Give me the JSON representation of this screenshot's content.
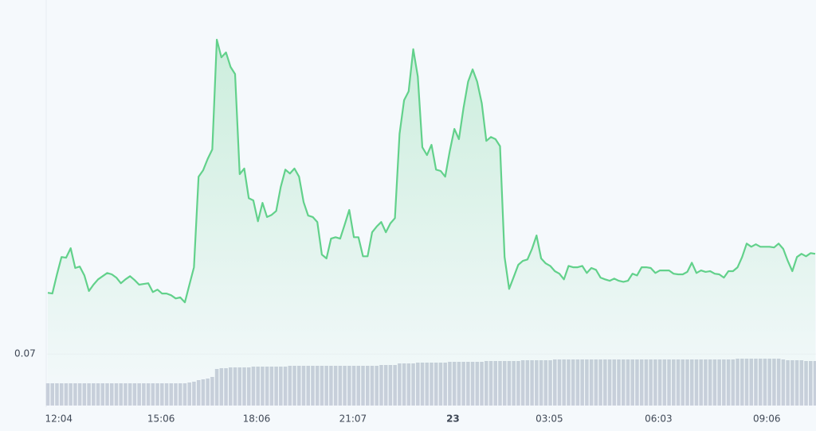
{
  "chart_data": {
    "type": "line",
    "color": "#62d18b",
    "values": [
      0.07173,
      0.07171,
      0.07225,
      0.07274,
      0.07272,
      0.07299,
      0.07243,
      0.07247,
      0.07222,
      0.07178,
      0.07196,
      0.07211,
      0.0722,
      0.07229,
      0.07225,
      0.07216,
      0.072,
      0.07211,
      0.0722,
      0.07209,
      0.07196,
      0.07198,
      0.072,
      0.07175,
      0.07182,
      0.07171,
      0.07171,
      0.07166,
      0.07157,
      0.0716,
      0.07146,
      0.07196,
      0.07245,
      0.07501,
      0.07519,
      0.07551,
      0.07578,
      0.07888,
      0.07838,
      0.07852,
      0.07811,
      0.07791,
      0.07508,
      0.07524,
      0.0744,
      0.07434,
      0.07375,
      0.07427,
      0.07387,
      0.07393,
      0.07404,
      0.07472,
      0.07521,
      0.0751,
      0.07524,
      0.07501,
      0.07429,
      0.07391,
      0.07387,
      0.07373,
      0.07281,
      0.0727,
      0.07326,
      0.0733,
      0.07326,
      0.07366,
      0.07407,
      0.0733,
      0.0733,
      0.07276,
      0.07276,
      0.07344,
      0.0736,
      0.07373,
      0.07344,
      0.07369,
      0.07384,
      0.07622,
      0.07717,
      0.07742,
      0.07861,
      0.07784,
      0.07584,
      0.07562,
      0.07591,
      0.07521,
      0.07517,
      0.07501,
      0.07573,
      0.07636,
      0.07607,
      0.07694,
      0.07769,
      0.07804,
      0.07769,
      0.07708,
      0.07602,
      0.07613,
      0.07607,
      0.07587,
      0.07274,
      0.07184,
      0.07218,
      0.07252,
      0.07263,
      0.07267,
      0.07297,
      0.07335,
      0.0727,
      0.07256,
      0.07249,
      0.07234,
      0.07227,
      0.07211,
      0.07249,
      0.07245,
      0.07245,
      0.07249,
      0.07229,
      0.07243,
      0.07238,
      0.07216,
      0.07211,
      0.07207,
      0.07213,
      0.07207,
      0.07204,
      0.07207,
      0.07227,
      0.07222,
      0.07245,
      0.07245,
      0.07243,
      0.07229,
      0.07236,
      0.07236,
      0.07236,
      0.07227,
      0.07225,
      0.07225,
      0.07232,
      0.07258,
      0.07229,
      0.07236,
      0.07232,
      0.07234,
      0.07227,
      0.07225,
      0.07216,
      0.07234,
      0.07234,
      0.07245,
      0.07274,
      0.07312,
      0.07303,
      0.0731,
      0.07303,
      0.07303,
      0.07303,
      0.07301,
      0.07312,
      0.07297,
      0.07263,
      0.07234,
      0.07274,
      0.07283,
      0.07276,
      0.07285,
      0.07283
    ],
    "volume": {
      "type": "bar",
      "color": "#c8cfdb",
      "y2lim": [
        0,
        100
      ],
      "values": [
        28,
        28,
        28,
        28,
        28,
        28,
        28,
        28,
        28,
        28,
        28,
        28,
        28,
        28,
        28,
        28,
        28,
        28,
        28,
        28,
        28,
        28,
        28,
        28,
        28,
        28,
        28,
        28,
        28,
        28,
        28,
        29,
        30,
        32,
        33,
        34,
        36,
        46,
        47,
        47,
        48,
        48,
        48,
        48,
        48,
        49,
        49,
        49,
        49,
        49,
        49,
        49,
        49,
        50,
        50,
        50,
        50,
        50,
        50,
        50,
        50,
        50,
        50,
        50,
        50,
        50,
        50,
        50,
        50,
        50,
        50,
        50,
        50,
        51,
        51,
        51,
        51,
        53,
        53,
        53,
        53,
        54,
        54,
        54,
        54,
        54,
        54,
        54,
        55,
        55,
        55,
        55,
        55,
        55,
        55,
        55,
        56,
        56,
        56,
        56,
        56,
        56,
        56,
        56,
        57,
        57,
        57,
        57,
        57,
        57,
        57,
        58,
        58,
        58,
        58,
        58,
        58,
        58,
        58,
        58,
        58,
        58,
        58,
        58,
        58,
        58,
        58,
        58,
        58,
        58,
        58,
        58,
        58,
        58,
        58,
        58,
        58,
        58,
        58,
        58,
        58,
        58,
        58,
        58,
        58,
        58,
        58,
        58,
        58,
        58,
        58,
        59,
        59,
        59,
        59,
        59,
        59,
        59,
        59,
        59,
        59,
        58,
        57,
        57,
        57,
        57,
        56,
        56,
        56
      ]
    },
    "xlim": [
      0,
      168
    ],
    "xticks": [
      {
        "value": 2.4,
        "label": "12:04"
      },
      {
        "value": 24.8,
        "label": "15:06"
      },
      {
        "value": 45.7,
        "label": "18:06"
      },
      {
        "value": 66.8,
        "label": "21:07"
      },
      {
        "value": 88.7,
        "label": "23",
        "bold": true
      },
      {
        "value": 109.8,
        "label": "03:05"
      },
      {
        "value": 133.7,
        "label": "06:03"
      },
      {
        "value": 157.4,
        "label": "09:06"
      }
    ],
    "ylim": [
      0.0685,
      0.08
    ],
    "yticks": [
      0.07
    ],
    "grid": true
  }
}
